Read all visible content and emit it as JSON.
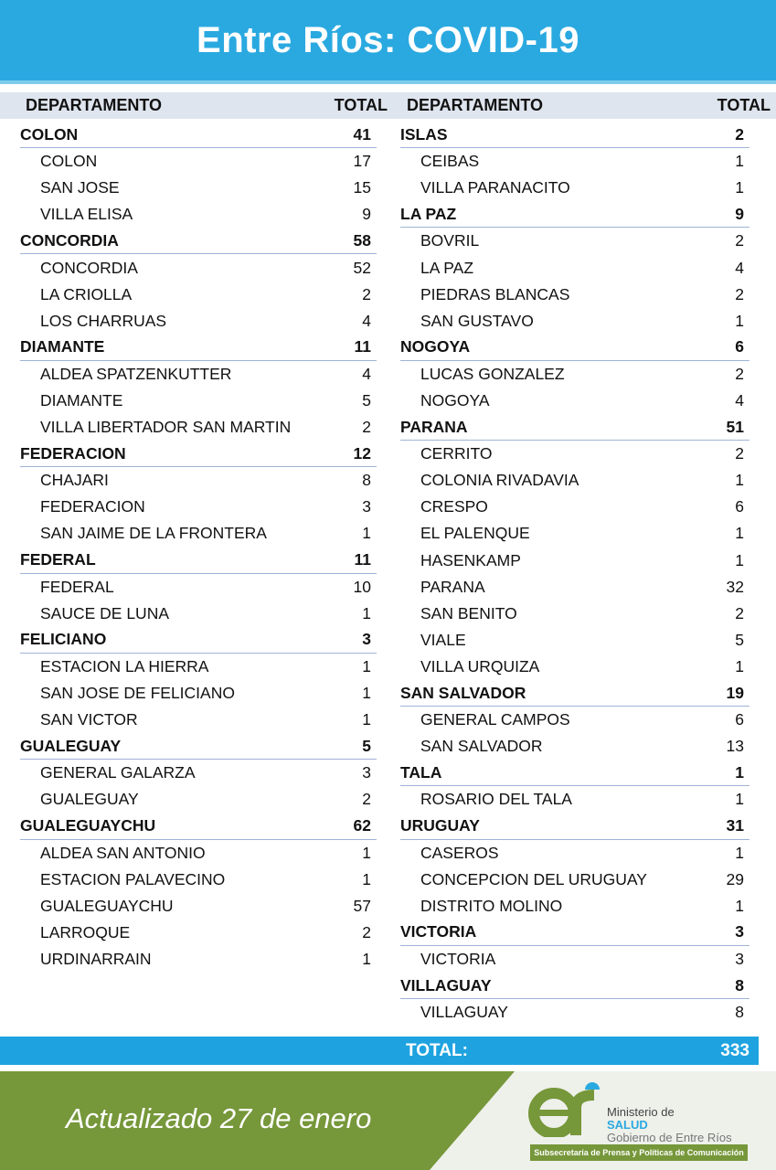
{
  "title": "Entre Ríos: COVID-19",
  "column_headers": {
    "departamento": "DEPARTAMENTO",
    "total": "TOTAL"
  },
  "left": [
    {
      "name": "COLON",
      "total": "41",
      "localities": [
        [
          "COLON",
          "17"
        ],
        [
          "SAN JOSE",
          "15"
        ],
        [
          "VILLA ELISA",
          "9"
        ]
      ]
    },
    {
      "name": "CONCORDIA",
      "total": "58",
      "localities": [
        [
          "CONCORDIA",
          "52"
        ],
        [
          "LA CRIOLLA",
          "2"
        ],
        [
          "LOS CHARRUAS",
          "4"
        ]
      ]
    },
    {
      "name": "DIAMANTE",
      "total": "11",
      "localities": [
        [
          "ALDEA SPATZENKUTTER",
          "4"
        ],
        [
          "DIAMANTE",
          "5"
        ],
        [
          "VILLA LIBERTADOR SAN MARTIN",
          "2"
        ]
      ]
    },
    {
      "name": "FEDERACION",
      "total": "12",
      "localities": [
        [
          "CHAJARI",
          "8"
        ],
        [
          "FEDERACION",
          "3"
        ],
        [
          "SAN JAIME DE LA FRONTERA",
          "1"
        ]
      ]
    },
    {
      "name": "FEDERAL",
      "total": "11",
      "localities": [
        [
          "FEDERAL",
          "10"
        ],
        [
          "SAUCE DE LUNA",
          "1"
        ]
      ]
    },
    {
      "name": "FELICIANO",
      "total": "3",
      "localities": [
        [
          "ESTACION LA HIERRA",
          "1"
        ],
        [
          "SAN JOSE DE FELICIANO",
          "1"
        ],
        [
          "SAN VICTOR",
          "1"
        ]
      ]
    },
    {
      "name": "GUALEGUAY",
      "total": "5",
      "localities": [
        [
          "GENERAL GALARZA",
          "3"
        ],
        [
          "GUALEGUAY",
          "2"
        ]
      ]
    },
    {
      "name": "GUALEGUAYCHU",
      "total": "62",
      "localities": [
        [
          "ALDEA SAN ANTONIO",
          "1"
        ],
        [
          "ESTACION PALAVECINO",
          "1"
        ],
        [
          "GUALEGUAYCHU",
          "57"
        ],
        [
          "LARROQUE",
          "2"
        ],
        [
          "URDINARRAIN",
          "1"
        ]
      ]
    }
  ],
  "right": [
    {
      "name": "ISLAS",
      "total": "2",
      "localities": [
        [
          "CEIBAS",
          "1"
        ],
        [
          "VILLA PARANACITO",
          "1"
        ]
      ]
    },
    {
      "name": "LA PAZ",
      "total": "9",
      "localities": [
        [
          "BOVRIL",
          "2"
        ],
        [
          "LA PAZ",
          "4"
        ],
        [
          "PIEDRAS BLANCAS",
          "2"
        ],
        [
          "SAN GUSTAVO",
          "1"
        ]
      ]
    },
    {
      "name": "NOGOYA",
      "total": "6",
      "localities": [
        [
          "LUCAS GONZALEZ",
          "2"
        ],
        [
          "NOGOYA",
          "4"
        ]
      ]
    },
    {
      "name": "PARANA",
      "total": "51",
      "localities": [
        [
          "CERRITO",
          "2"
        ],
        [
          "COLONIA RIVADAVIA",
          "1"
        ],
        [
          "CRESPO",
          "6"
        ],
        [
          "EL PALENQUE",
          "1"
        ],
        [
          "HASENKAMP",
          "1"
        ],
        [
          "PARANA",
          "32"
        ],
        [
          "SAN BENITO",
          "2"
        ],
        [
          "VIALE",
          "5"
        ],
        [
          "VILLA URQUIZA",
          "1"
        ]
      ]
    },
    {
      "name": "SAN SALVADOR",
      "total": "19",
      "localities": [
        [
          "GENERAL CAMPOS",
          "6"
        ],
        [
          "SAN SALVADOR",
          "13"
        ]
      ]
    },
    {
      "name": "TALA",
      "total": "1",
      "localities": [
        [
          "ROSARIO DEL TALA",
          "1"
        ]
      ]
    },
    {
      "name": "URUGUAY",
      "total": "31",
      "localities": [
        [
          "CASEROS",
          "1"
        ],
        [
          "CONCEPCION DEL URUGUAY",
          "29"
        ],
        [
          "DISTRITO MOLINO",
          "1"
        ]
      ]
    },
    {
      "name": "VICTORIA",
      "total": "3",
      "localities": [
        [
          "VICTORIA",
          "3"
        ]
      ]
    },
    {
      "name": "VILLAGUAY",
      "total": "8",
      "localities": [
        [
          "VILLAGUAY",
          "8"
        ]
      ]
    }
  ],
  "total": {
    "label": "TOTAL:",
    "value": "333"
  },
  "footer": {
    "updated": "Actualizado 27 de enero",
    "logo_line1": "Ministerio de",
    "logo_line2": "SALUD",
    "logo_line3": "Gobierno de Entre Ríos",
    "logo_sub": "Subsecretaría de Prensa y Políticas de Comunicación"
  },
  "colors": {
    "header": "#2aa9e0",
    "footer_green": "#76973a"
  }
}
